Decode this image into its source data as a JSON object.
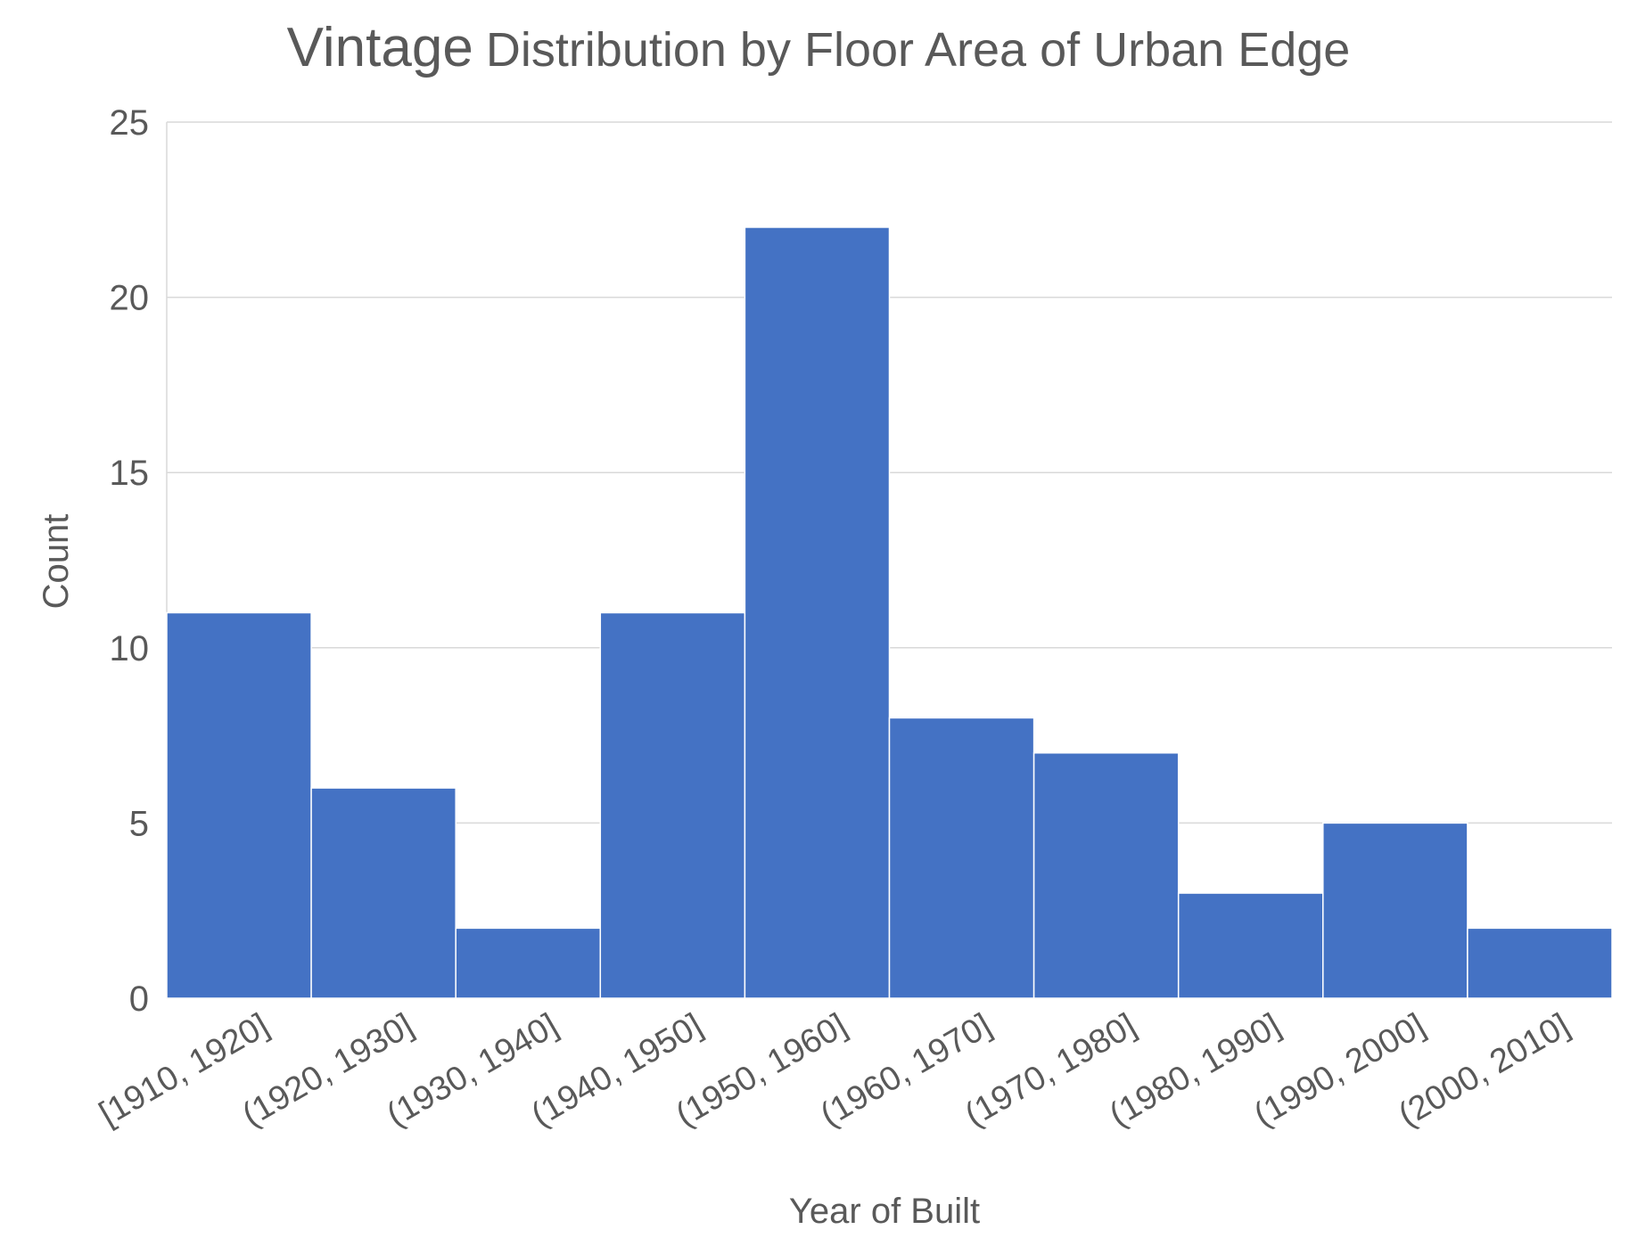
{
  "chart_data": {
    "type": "bar",
    "title": "Vintage Distribution by Floor Area of Urban Edge",
    "title_parts": [
      "Vintage",
      "Distribution by Floor Area of Urban Edge"
    ],
    "xlabel": "Year of Built",
    "ylabel": "Count",
    "categories": [
      "[1910, 1920]",
      "(1920, 1930]",
      "(1930, 1940]",
      "(1940, 1950]",
      "(1950, 1960]",
      "(1960, 1970]",
      "(1970, 1980]",
      "(1980, 1990]",
      "(1990, 2000]",
      "(2000, 2010]"
    ],
    "values": [
      11,
      6,
      2,
      11,
      22,
      8,
      7,
      3,
      5,
      2
    ],
    "ylim": [
      0,
      25
    ],
    "yticks": [
      "0",
      "5",
      "10",
      "15",
      "20",
      "25"
    ],
    "grid": true,
    "legend": "none",
    "colors": {
      "bar": "#4472C4",
      "bar_edge": "#ffffff",
      "grid": "#D9D9D9",
      "text": "#595959"
    }
  }
}
